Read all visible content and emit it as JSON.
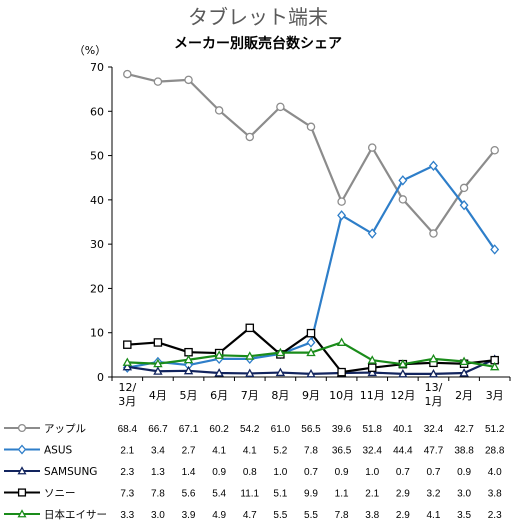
{
  "chart_data": {
    "type": "line",
    "title": "タブレット端末",
    "subtitle": "メーカー別販売台数シェア",
    "ylabel": "（%）",
    "ylim": [
      0,
      70
    ],
    "yticks": [
      0,
      10,
      20,
      30,
      40,
      50,
      60,
      70
    ],
    "grid": false,
    "categories": [
      "12/3月",
      "4月",
      "5月",
      "6月",
      "7月",
      "8月",
      "9月",
      "10月",
      "11月",
      "12月",
      "13/1月",
      "2月",
      "3月"
    ],
    "category_lines": [
      [
        "12/",
        "3月"
      ],
      [
        "4月"
      ],
      [
        "5月"
      ],
      [
        "6月"
      ],
      [
        "7月"
      ],
      [
        "8月"
      ],
      [
        "9月"
      ],
      [
        "10月"
      ],
      [
        "11月"
      ],
      [
        "12月"
      ],
      [
        "13/",
        "1月"
      ],
      [
        "2月"
      ],
      [
        "3月"
      ]
    ],
    "series": [
      {
        "name": "アップル",
        "color": "#8c8c8c",
        "marker": "circle",
        "values": [
          68.4,
          66.7,
          67.1,
          60.2,
          54.2,
          61.0,
          56.5,
          39.6,
          51.8,
          40.1,
          32.4,
          42.7,
          51.2
        ]
      },
      {
        "name": "ASUS",
        "color": "#2e7ec9",
        "marker": "diamond",
        "values": [
          2.1,
          3.4,
          2.7,
          4.1,
          4.1,
          5.2,
          7.8,
          36.5,
          32.4,
          44.4,
          47.7,
          38.8,
          28.8
        ]
      },
      {
        "name": "SAMSUNG",
        "color": "#12245e",
        "marker": "triangle",
        "values": [
          2.3,
          1.3,
          1.4,
          0.9,
          0.8,
          1.0,
          0.7,
          0.9,
          1.0,
          0.7,
          0.7,
          0.9,
          4.0
        ]
      },
      {
        "name": "ソニー",
        "color": "#000000",
        "marker": "square",
        "values": [
          7.3,
          7.8,
          5.6,
          5.4,
          11.1,
          5.1,
          9.9,
          1.1,
          2.1,
          2.9,
          3.2,
          3.0,
          3.8
        ]
      },
      {
        "name": "日本エイサー",
        "color": "#1a8c1a",
        "marker": "triangle",
        "values": [
          3.3,
          3.0,
          3.9,
          4.9,
          4.7,
          5.5,
          5.5,
          7.8,
          3.8,
          2.9,
          4.1,
          3.5,
          2.3
        ]
      }
    ]
  }
}
